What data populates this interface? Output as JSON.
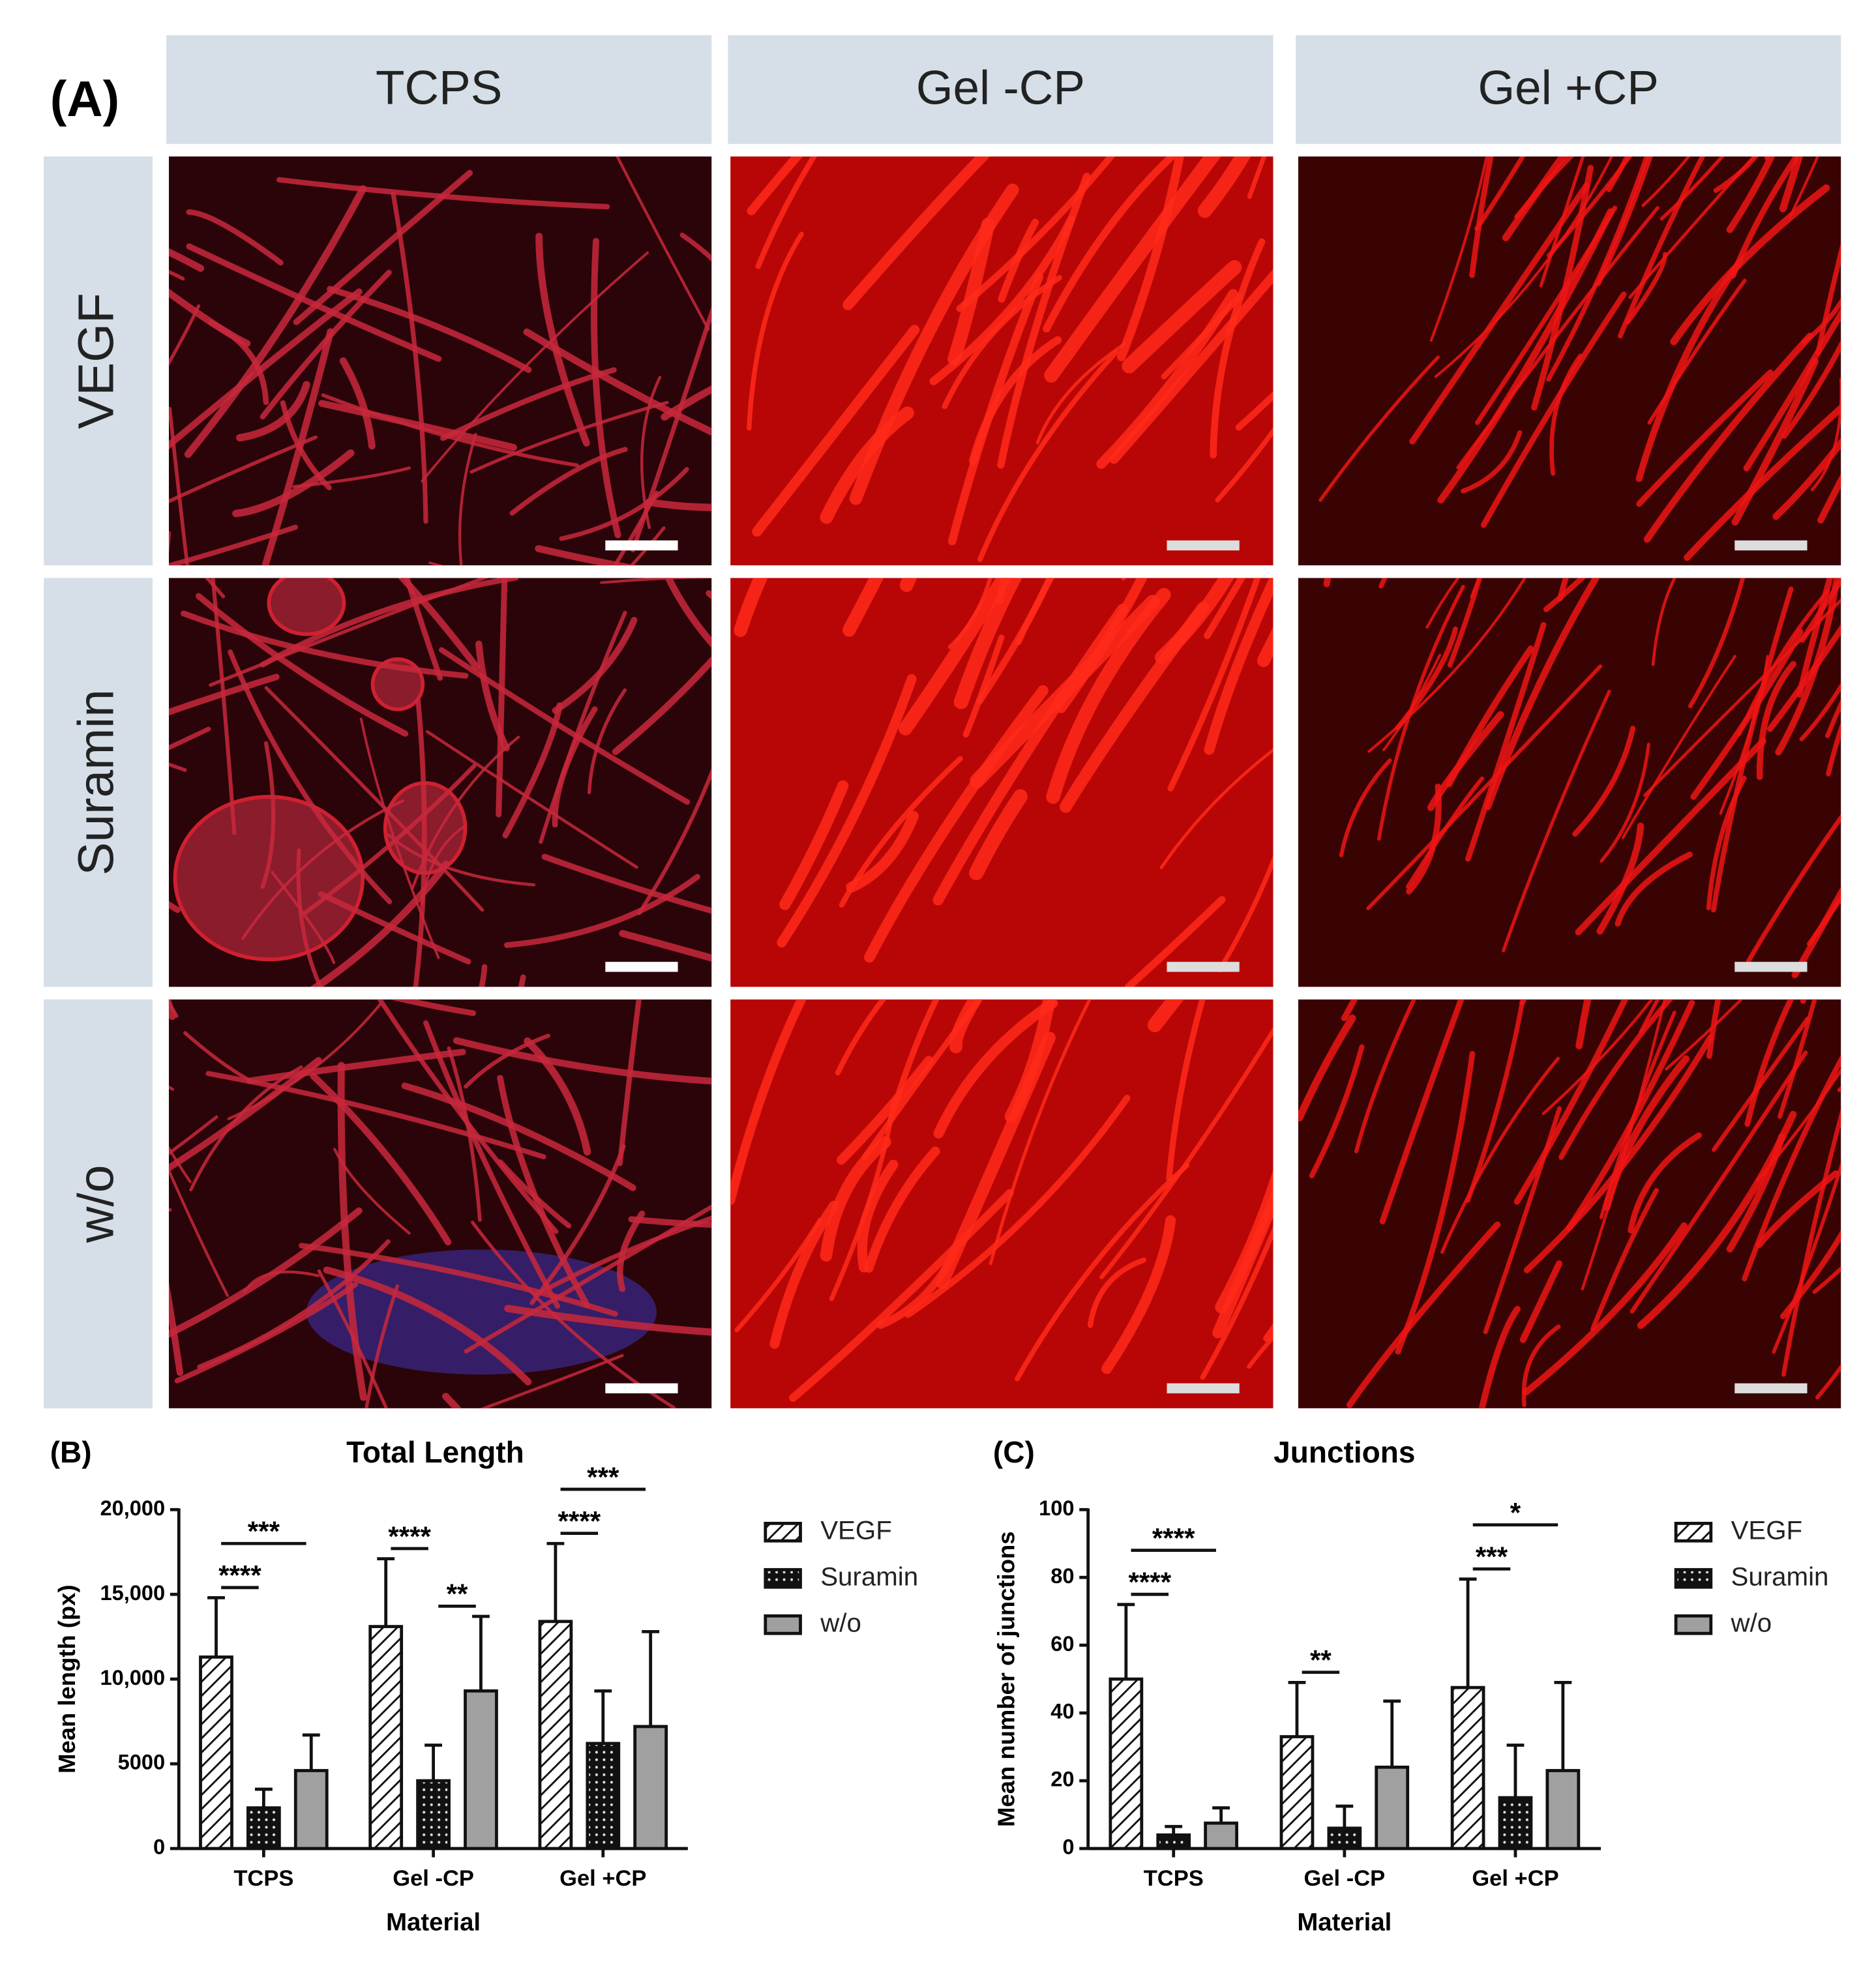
{
  "panel_a": {
    "label": "(A)",
    "columns": [
      "TCPS",
      "Gel -CP",
      "Gel +CP"
    ],
    "rows": [
      "VEGF",
      "Suramin",
      "w/o"
    ]
  },
  "chart_data": [
    {
      "type": "bar",
      "panel_label": "(B)",
      "title": "Total Length",
      "y_label": "Mean length (px)",
      "x_label": "Material",
      "categories": [
        "TCPS",
        "Gel -CP",
        "Gel +CP"
      ],
      "series": [
        {
          "name": "VEGF",
          "color": "#ffffff",
          "pattern": "hatch",
          "values": [
            11300,
            13100,
            13400
          ],
          "errors": [
            3500,
            4000,
            4600
          ]
        },
        {
          "name": "Suramin",
          "color": "#111111",
          "pattern": "dots",
          "values": [
            2400,
            4000,
            6200
          ],
          "errors": [
            1100,
            2100,
            3100
          ]
        },
        {
          "name": "w/o",
          "color": "#a0a0a0",
          "values": [
            4600,
            9300,
            7200
          ],
          "errors": [
            2100,
            4400,
            5600
          ]
        }
      ],
      "ylim": [
        0,
        20000
      ],
      "yticks": [
        0,
        5000,
        {
          "value": 10000,
          "label": "10,000"
        },
        {
          "value": 15000,
          "label": "15,000"
        },
        {
          "value": 20000,
          "label": "20,000"
        }
      ],
      "annotations": [
        {
          "text": "****",
          "category": 0,
          "from": 0,
          "to": 1
        },
        {
          "text": "***",
          "category": 0,
          "from": 0,
          "to": 2
        },
        {
          "text": "****",
          "category": 1,
          "from": 0,
          "to": 1
        },
        {
          "text": "**",
          "category": 1,
          "from": 1,
          "to": 2
        },
        {
          "text": "****",
          "category": 2,
          "from": 0,
          "to": 1
        },
        {
          "text": "***",
          "category": 2,
          "from": 0,
          "to": 2
        }
      ]
    },
    {
      "type": "bar",
      "panel_label": "(C)",
      "title": "Junctions",
      "y_label": "Mean number of junctions",
      "x_label": "Material",
      "categories": [
        "TCPS",
        "Gel -CP",
        "Gel +CP"
      ],
      "series": [
        {
          "name": "VEGF",
          "color": "#ffffff",
          "pattern": "hatch",
          "values": [
            50,
            33,
            47.5
          ],
          "errors": [
            22,
            16,
            32
          ]
        },
        {
          "name": "Suramin",
          "color": "#111111",
          "pattern": "dots",
          "values": [
            4,
            6,
            15
          ],
          "errors": [
            2.5,
            6.5,
            15.5
          ]
        },
        {
          "name": "w/o",
          "color": "#a0a0a0",
          "values": [
            7.5,
            24,
            23
          ],
          "errors": [
            4.5,
            19.5,
            26
          ]
        }
      ],
      "ylim": [
        0,
        100
      ],
      "yticks": [
        0,
        20,
        40,
        60,
        80,
        100
      ],
      "annotations": [
        {
          "text": "****",
          "category": 0,
          "from": 0,
          "to": 1
        },
        {
          "text": "****",
          "category": 0,
          "from": 0,
          "to": 2
        },
        {
          "text": "**",
          "category": 1,
          "from": 0,
          "to": 1
        },
        {
          "text": "***",
          "category": 2,
          "from": 0,
          "to": 1
        },
        {
          "text": "*",
          "category": 2,
          "from": 0,
          "to": 2
        }
      ]
    }
  ]
}
